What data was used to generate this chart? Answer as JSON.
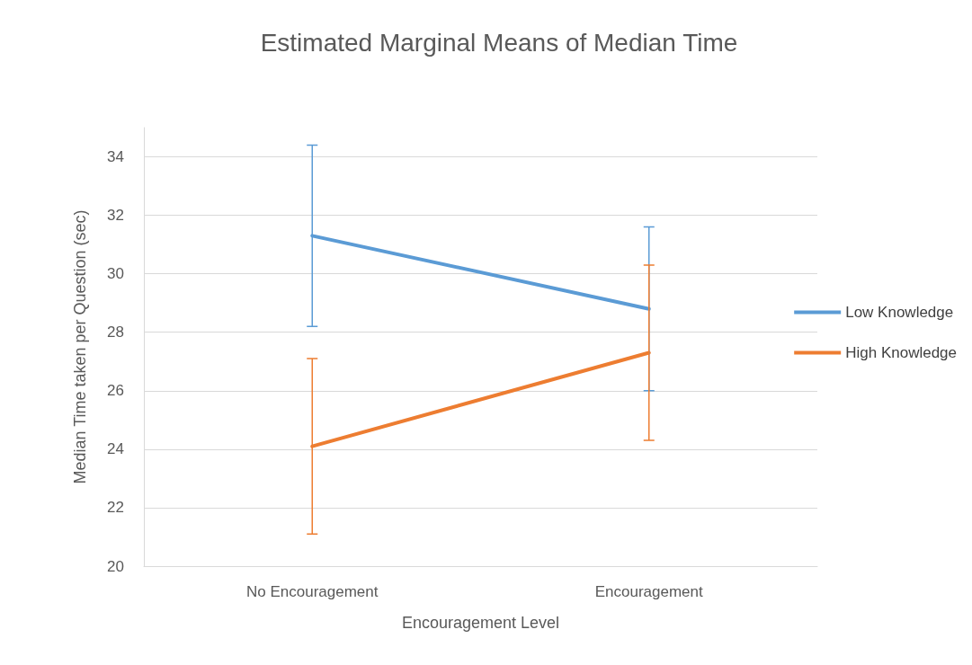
{
  "chart_data": {
    "type": "line",
    "title": "Estimated Marginal Means of Median Time",
    "xlabel": "Encouragement Level",
    "ylabel": "Median Time taken per Question (sec)",
    "categories": [
      "No Encouragement",
      "Encouragement"
    ],
    "series": [
      {
        "name": "Low Knowledge",
        "color": "#5b9bd5",
        "values": [
          31.3,
          28.8
        ],
        "errors": [
          3.1,
          2.8
        ]
      },
      {
        "name": "High Knowledge",
        "color": "#ed7d31",
        "values": [
          24.1,
          27.3
        ],
        "errors": [
          3.0,
          3.0
        ]
      }
    ],
    "ylim": [
      20,
      35
    ],
    "yticks": [
      20,
      22,
      24,
      26,
      28,
      30,
      32,
      34
    ],
    "grid": "y",
    "legend": "right",
    "marker": "none",
    "line_style": "solid"
  }
}
